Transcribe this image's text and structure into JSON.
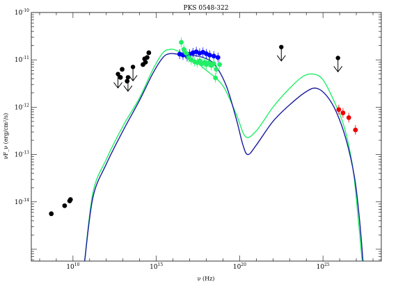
{
  "chart_data": {
    "type": "scatter",
    "title": "PKS 0548-322",
    "xlabel": "ν (Hz)",
    "ylabel": "νF_ν (erg/cm²/s)",
    "xscale": "log",
    "yscale": "log",
    "xlim_log10": [
      7.5,
      28.5
    ],
    "ylim_log10": [
      -15.25,
      -10
    ],
    "x_tick_labels": [
      {
        "log10": 10,
        "label": "10",
        "sup": "10"
      },
      {
        "log10": 15,
        "label": "10",
        "sup": "15"
      },
      {
        "log10": 20,
        "label": "10",
        "sup": "20"
      },
      {
        "log10": 25,
        "label": "10",
        "sup": "25"
      }
    ],
    "y_tick_labels": [
      {
        "log10": -10,
        "label": "10",
        "sup": "-10"
      },
      {
        "log10": -11,
        "label": "10",
        "sup": "-11"
      },
      {
        "log10": -12,
        "label": "10",
        "sup": "-12"
      },
      {
        "log10": -13,
        "label": "10",
        "sup": "-13"
      },
      {
        "log10": -14,
        "label": "10",
        "sup": "-14"
      }
    ],
    "series": [
      {
        "type": "points",
        "color": "#000000",
        "points": [
          {
            "x": 8.7,
            "y": -14.25
          },
          {
            "x": 9.5,
            "y": -14.08
          },
          {
            "x": 9.8,
            "y": -13.98
          },
          {
            "x": 9.85,
            "y": -13.95
          },
          {
            "x": 12.85,
            "y": -11.37
          },
          {
            "x": 12.95,
            "y": -11.2
          },
          {
            "x": 13.25,
            "y": -11.45
          },
          {
            "x": 14.2,
            "y": -11.1
          },
          {
            "x": 14.3,
            "y": -10.98
          },
          {
            "x": 14.35,
            "y": -11.05
          },
          {
            "x": 14.45,
            "y": -10.95
          },
          {
            "x": 14.55,
            "y": -10.85
          }
        ]
      },
      {
        "type": "upper_limits",
        "color": "#000000",
        "points": [
          {
            "x": 12.7,
            "y": -11.3
          },
          {
            "x": 13.3,
            "y": -11.37
          },
          {
            "x": 13.6,
            "y": -11.15
          },
          {
            "x": 22.5,
            "y": -10.73
          },
          {
            "x": 25.9,
            "y": -10.96
          }
        ]
      },
      {
        "type": "points",
        "color": "#0000ff",
        "points": [
          {
            "x": 16.4,
            "y": -10.88
          },
          {
            "x": 16.6,
            "y": -10.9
          },
          {
            "x": 16.85,
            "y": -10.93
          },
          {
            "x": 17.0,
            "y": -10.88
          },
          {
            "x": 17.2,
            "y": -10.85
          },
          {
            "x": 17.4,
            "y": -10.83
          },
          {
            "x": 17.6,
            "y": -10.86
          },
          {
            "x": 17.8,
            "y": -10.84
          },
          {
            "x": 18.0,
            "y": -10.87
          },
          {
            "x": 18.2,
            "y": -10.9
          },
          {
            "x": 18.45,
            "y": -10.92
          },
          {
            "x": 18.7,
            "y": -10.95
          }
        ]
      },
      {
        "type": "points",
        "color": "#22ee66",
        "points": [
          {
            "x": 16.5,
            "y": -10.63
          },
          {
            "x": 16.65,
            "y": -10.78
          },
          {
            "x": 16.8,
            "y": -10.86
          },
          {
            "x": 16.95,
            "y": -10.95
          },
          {
            "x": 17.1,
            "y": -11.0
          },
          {
            "x": 17.3,
            "y": -11.04
          },
          {
            "x": 17.45,
            "y": -11.06
          },
          {
            "x": 17.6,
            "y": -11.02
          },
          {
            "x": 17.75,
            "y": -11.08
          },
          {
            "x": 17.9,
            "y": -11.05
          },
          {
            "x": 18.0,
            "y": -11.1
          },
          {
            "x": 18.15,
            "y": -11.06
          },
          {
            "x": 18.3,
            "y": -11.12
          },
          {
            "x": 18.45,
            "y": -11.08
          },
          {
            "x": 18.6,
            "y": -11.2
          },
          {
            "x": 18.8,
            "y": -11.1
          },
          {
            "x": 18.55,
            "y": -11.38
          }
        ]
      },
      {
        "type": "points",
        "color": "#ee0000",
        "points": [
          {
            "x": 25.95,
            "y": -12.05
          },
          {
            "x": 26.2,
            "y": -12.12
          },
          {
            "x": 26.55,
            "y": -12.22
          },
          {
            "x": 26.95,
            "y": -12.48
          }
        ]
      },
      {
        "type": "curve",
        "color": "#22ee66",
        "points": [
          {
            "x": 10.7,
            "y": -15.25
          },
          {
            "x": 11.2,
            "y": -13.8
          },
          {
            "x": 12.0,
            "y": -13.1
          },
          {
            "x": 13.0,
            "y": -12.4
          },
          {
            "x": 14.0,
            "y": -11.8
          },
          {
            "x": 14.8,
            "y": -11.2
          },
          {
            "x": 15.4,
            "y": -10.85
          },
          {
            "x": 15.8,
            "y": -10.78
          },
          {
            "x": 16.2,
            "y": -10.8
          },
          {
            "x": 17.0,
            "y": -10.95
          },
          {
            "x": 18.0,
            "y": -11.22
          },
          {
            "x": 19.0,
            "y": -11.55
          },
          {
            "x": 19.8,
            "y": -12.15
          },
          {
            "x": 20.35,
            "y": -12.62
          },
          {
            "x": 21.0,
            "y": -12.5
          },
          {
            "x": 22.0,
            "y": -12.0
          },
          {
            "x": 23.0,
            "y": -11.6
          },
          {
            "x": 23.8,
            "y": -11.35
          },
          {
            "x": 24.4,
            "y": -11.3
          },
          {
            "x": 25.0,
            "y": -11.42
          },
          {
            "x": 25.7,
            "y": -11.9
          },
          {
            "x": 26.3,
            "y": -12.45
          },
          {
            "x": 26.8,
            "y": -13.3
          },
          {
            "x": 27.1,
            "y": -14.3
          },
          {
            "x": 27.35,
            "y": -15.25
          }
        ]
      },
      {
        "type": "curve",
        "color": "#1a1aa0",
        "points": [
          {
            "x": 10.7,
            "y": -15.25
          },
          {
            "x": 11.2,
            "y": -13.9
          },
          {
            "x": 12.0,
            "y": -13.2
          },
          {
            "x": 13.0,
            "y": -12.5
          },
          {
            "x": 14.0,
            "y": -11.85
          },
          {
            "x": 14.8,
            "y": -11.28
          },
          {
            "x": 15.4,
            "y": -10.95
          },
          {
            "x": 15.8,
            "y": -10.87
          },
          {
            "x": 16.3,
            "y": -10.88
          },
          {
            "x": 17.0,
            "y": -10.9
          },
          {
            "x": 17.8,
            "y": -10.95
          },
          {
            "x": 18.5,
            "y": -11.1
          },
          {
            "x": 19.2,
            "y": -11.55
          },
          {
            "x": 19.8,
            "y": -12.25
          },
          {
            "x": 20.2,
            "y": -12.8
          },
          {
            "x": 20.5,
            "y": -13.0
          },
          {
            "x": 21.0,
            "y": -12.8
          },
          {
            "x": 22.0,
            "y": -12.3
          },
          {
            "x": 23.0,
            "y": -11.95
          },
          {
            "x": 24.0,
            "y": -11.67
          },
          {
            "x": 24.6,
            "y": -11.6
          },
          {
            "x": 25.2,
            "y": -11.75
          },
          {
            "x": 25.8,
            "y": -12.1
          },
          {
            "x": 26.4,
            "y": -12.7
          },
          {
            "x": 26.9,
            "y": -13.5
          },
          {
            "x": 27.2,
            "y": -14.4
          },
          {
            "x": 27.4,
            "y": -15.25
          }
        ]
      }
    ],
    "grid": false,
    "legend": "none"
  }
}
